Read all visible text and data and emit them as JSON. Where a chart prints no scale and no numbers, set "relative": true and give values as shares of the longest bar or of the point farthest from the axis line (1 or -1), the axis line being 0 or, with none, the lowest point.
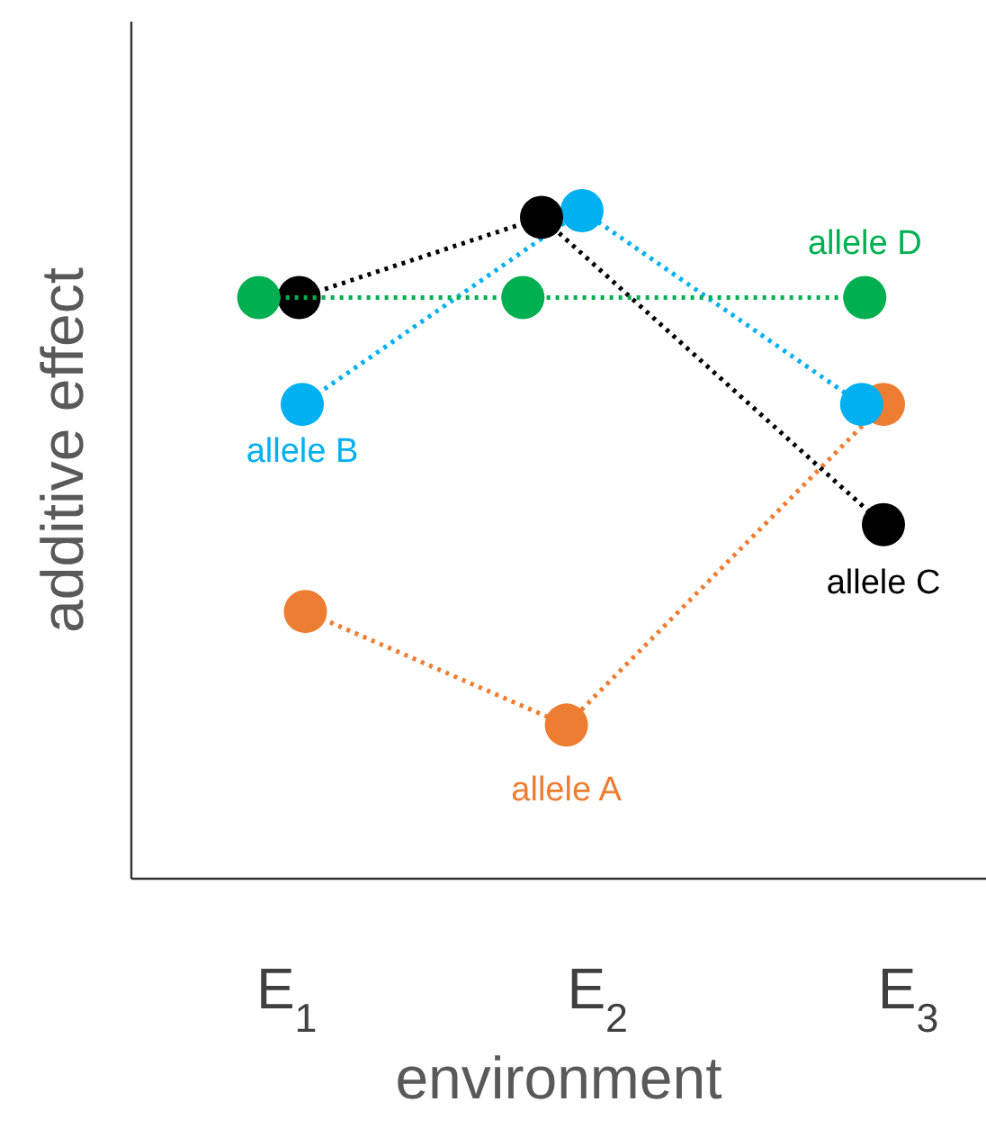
{
  "chart_data": {
    "type": "line",
    "relative": true,
    "xlabel": "environment",
    "ylabel": "additive effect",
    "xlim": [
      0.5,
      3.25
    ],
    "xticks": [
      {
        "value": 1,
        "label": "E$_{1}$"
      },
      {
        "value": 2,
        "label": "E$_{2}$"
      },
      {
        "value": 3,
        "label": "E$_{3}$"
      }
    ],
    "marker": "circle",
    "line_style": "dotted",
    "grid": false,
    "series": [
      {
        "name": "allele A",
        "color": "#ed7d31",
        "x": [
          1.06,
          1.9,
          2.92
        ],
        "values": [
          0.4,
          0.23,
          0.71
        ]
      },
      {
        "name": "allele B",
        "color": "#00b0f0",
        "x": [
          1.05,
          1.95,
          2.85
        ],
        "values": [
          0.71,
          1.0,
          0.71
        ]
      },
      {
        "name": "allele C",
        "color": "#000000",
        "x": [
          1.04,
          1.82,
          2.92
        ],
        "values": [
          0.87,
          0.99,
          0.53
        ]
      },
      {
        "name": "allele D",
        "color": "#00b050",
        "x": [
          0.91,
          1.76,
          2.86
        ],
        "values": [
          0.87,
          0.87,
          0.87
        ]
      }
    ]
  }
}
